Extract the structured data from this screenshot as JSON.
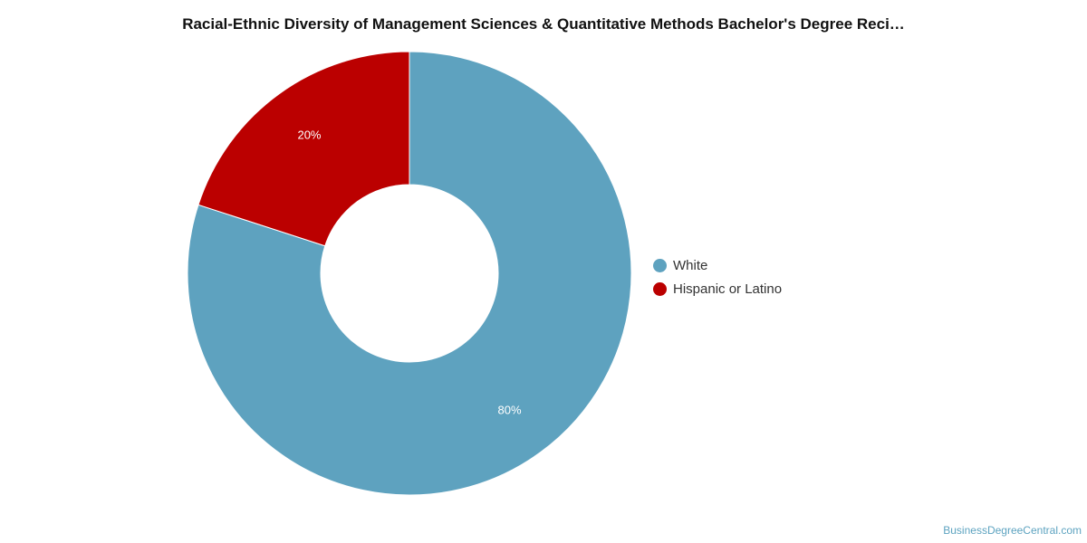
{
  "chart_data": {
    "type": "pie",
    "variant": "donut",
    "title": "Racial-Ethnic Diversity of Management Sciences & Quantitative Methods Bachelor's Degree Reci…",
    "slices": [
      {
        "name": "White",
        "value": 80,
        "label": "80%",
        "color": "#5ea2bf"
      },
      {
        "name": "Hispanic or Latino",
        "value": 20,
        "label": "20%",
        "color": "#bb0000"
      }
    ],
    "legend_position": "right"
  },
  "legend": {
    "items": [
      {
        "label": "White",
        "color": "#5ea2bf"
      },
      {
        "label": "Hispanic or Latino",
        "color": "#bb0000"
      }
    ]
  },
  "footer": {
    "source": "BusinessDegreeCentral.com"
  }
}
